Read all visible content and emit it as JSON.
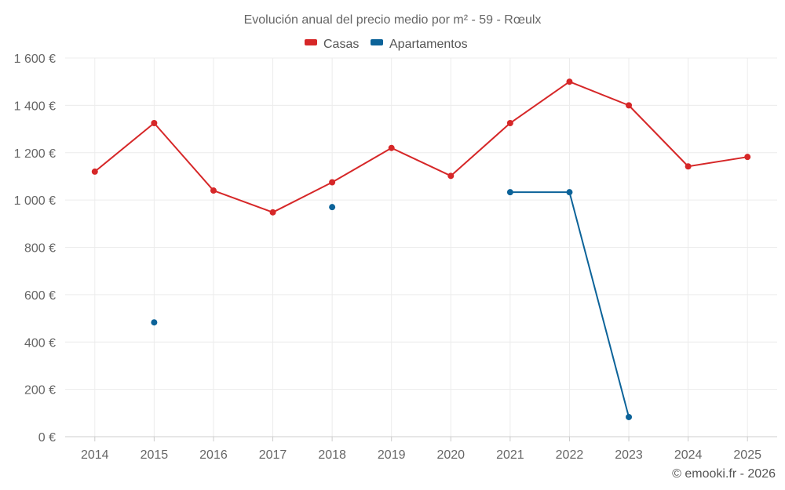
{
  "chart_data": {
    "type": "line",
    "title": "Evolución anual del precio medio por m² - 59 - Rœulx",
    "x": [
      "2014",
      "2015",
      "2016",
      "2017",
      "2018",
      "2019",
      "2020",
      "2021",
      "2022",
      "2023",
      "2024",
      "2025"
    ],
    "ylim": [
      0,
      1600
    ],
    "yticks": [
      0,
      200,
      400,
      600,
      800,
      1000,
      1200,
      1400,
      1600
    ],
    "ytick_labels": [
      "0 €",
      "200 €",
      "400 €",
      "600 €",
      "800 €",
      "1 000 €",
      "1 200 €",
      "1 400 €",
      "1 600 €"
    ],
    "series": [
      {
        "name": "Casas",
        "color": "#d62728",
        "values": [
          1120,
          1325,
          1040,
          948,
          1075,
          1220,
          1102,
          1325,
          1500,
          1400,
          1142,
          1182
        ]
      },
      {
        "name": "Apartamentos",
        "color": "#0c6399",
        "values": [
          null,
          483,
          null,
          null,
          970,
          null,
          null,
          1033,
          1033,
          83,
          null,
          null
        ]
      }
    ],
    "grid": true,
    "legend": "top-center"
  },
  "credit": "© emooki.fr - 2026"
}
